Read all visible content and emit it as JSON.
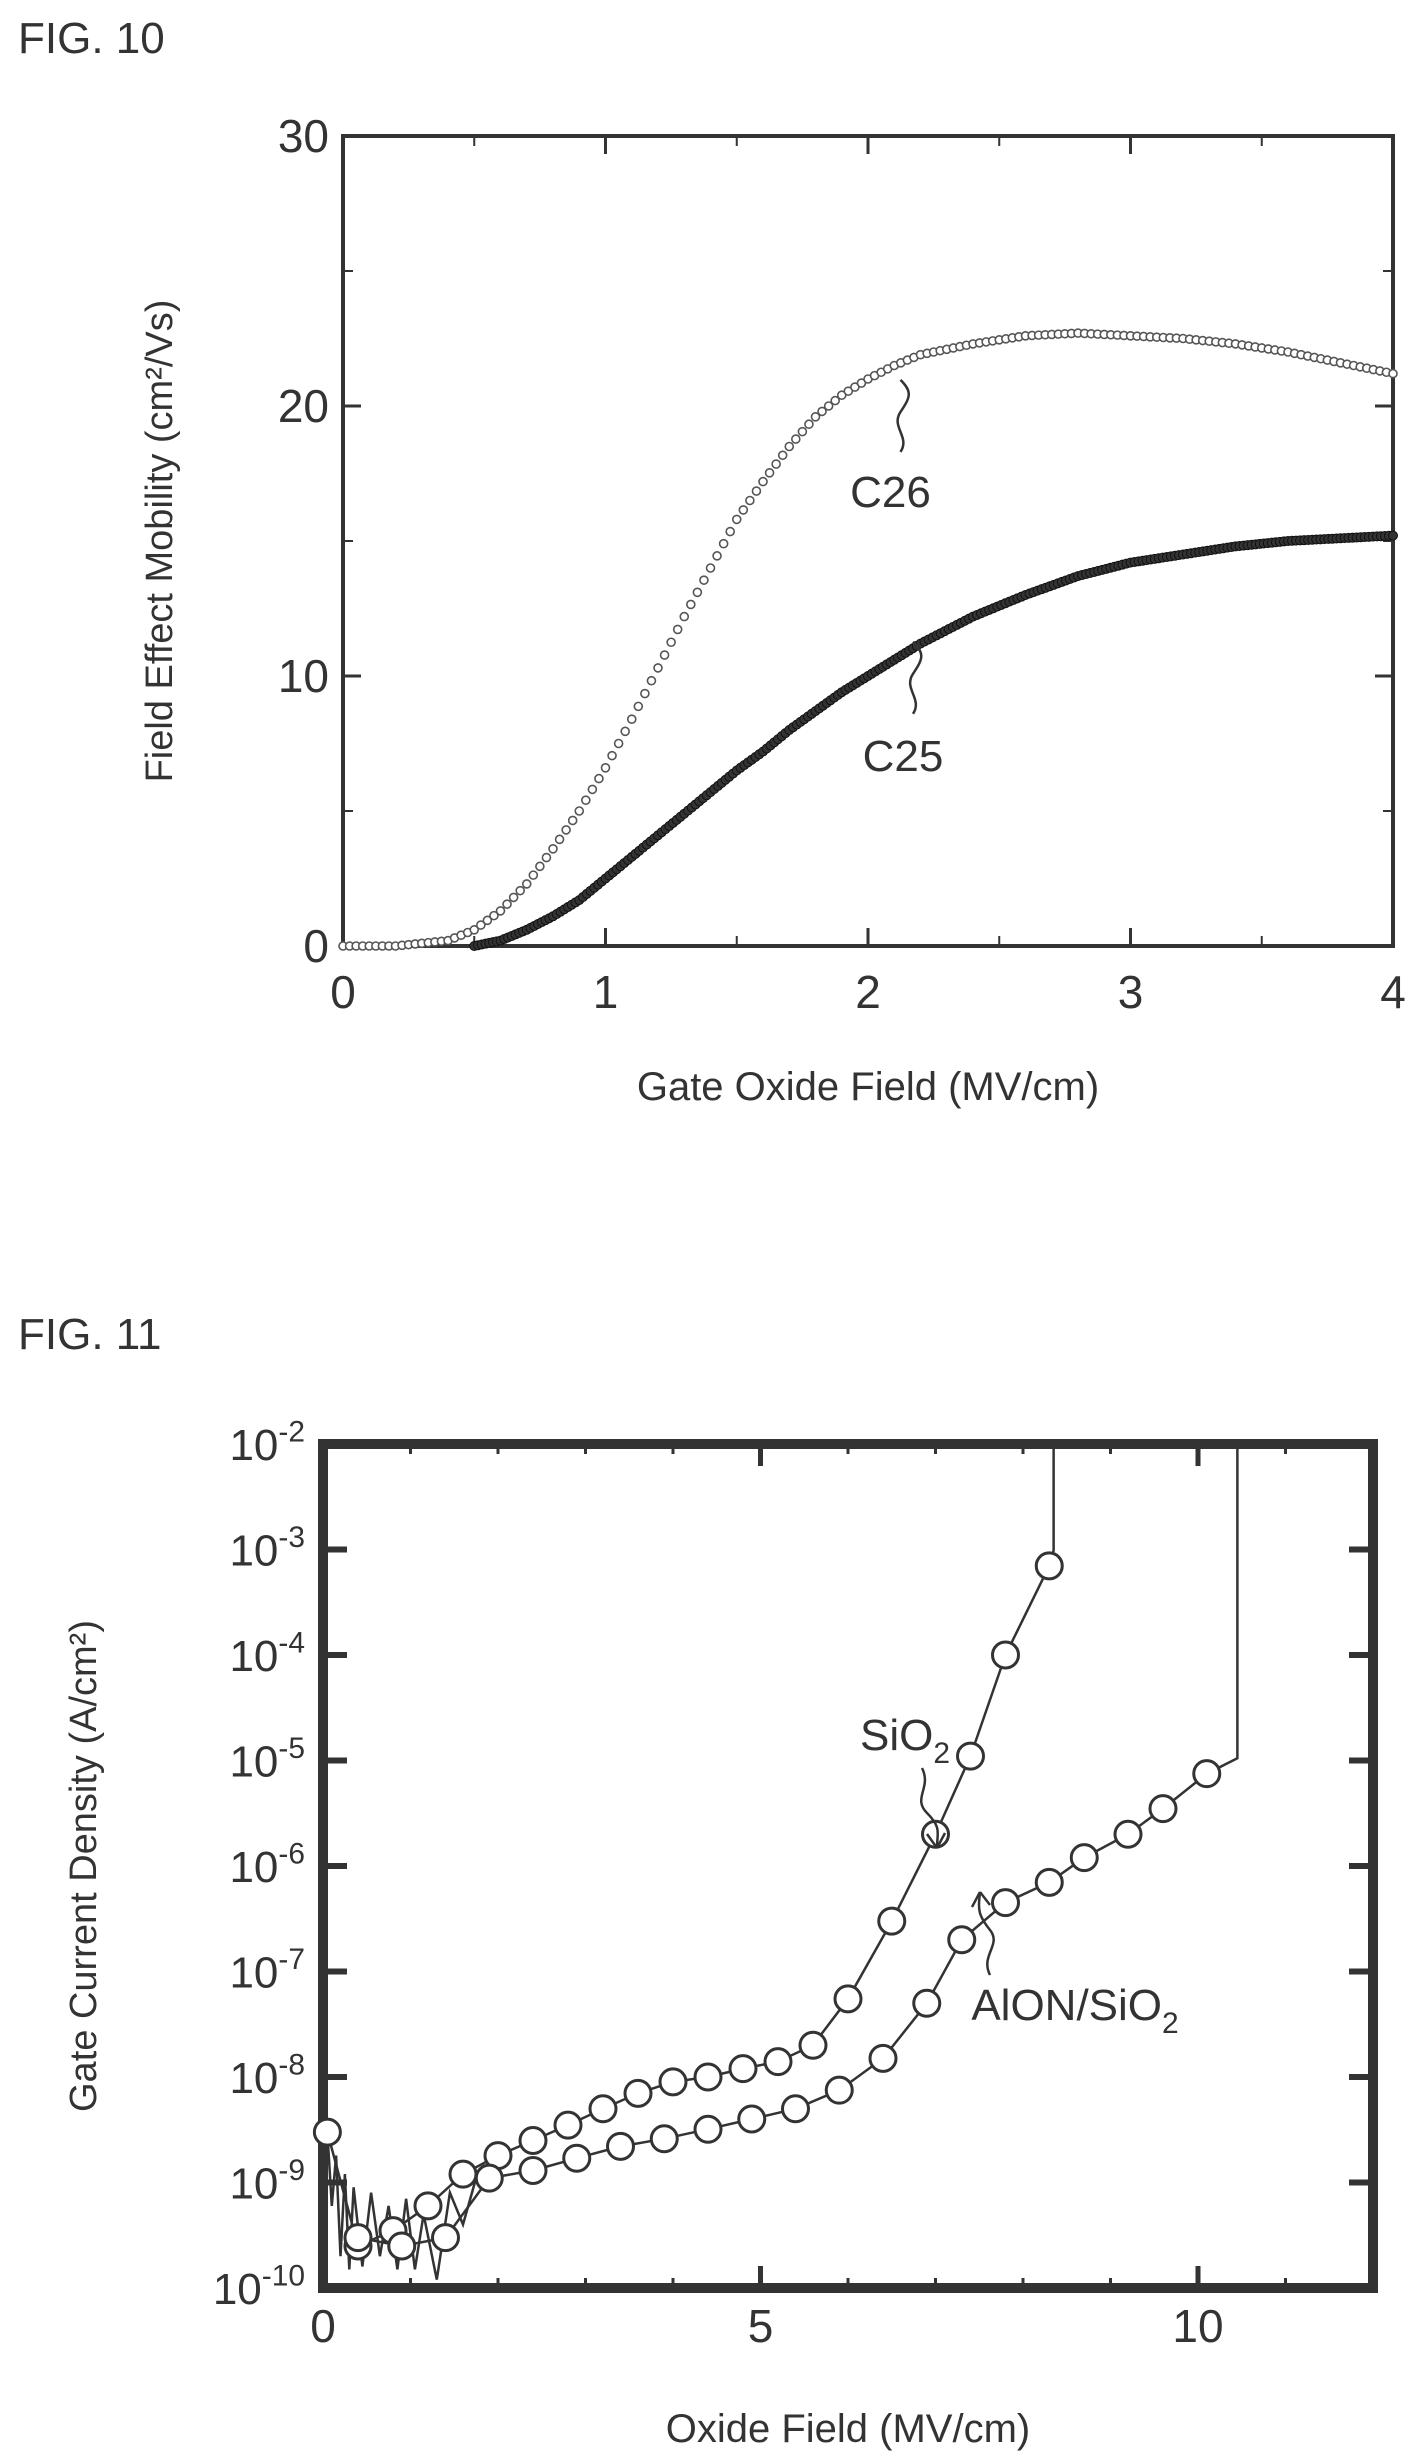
{
  "figures": [
    {
      "label": "FIG. 10"
    },
    {
      "label": "FIG. 11"
    }
  ],
  "chart_data": [
    {
      "type": "scatter",
      "title": "",
      "xlabel": "Gate Oxide Field (MV/cm)",
      "ylabel": "Field Effect Mobility (cm²/Vs)",
      "xlim": [
        0,
        4
      ],
      "ylim": [
        0,
        30
      ],
      "xticks": [
        "0",
        "1",
        "2",
        "3",
        "4"
      ],
      "yticks": [
        "0",
        "10",
        "20",
        "30"
      ],
      "grid": false,
      "series": [
        {
          "name": "C26",
          "marker": "open-circle-small",
          "x": [
            0,
            0.2,
            0.4,
            0.5,
            0.6,
            0.7,
            0.8,
            0.9,
            1.0,
            1.1,
            1.2,
            1.3,
            1.4,
            1.5,
            1.6,
            1.7,
            1.8,
            1.9,
            2.0,
            2.1,
            2.2,
            2.4,
            2.6,
            2.8,
            3.0,
            3.2,
            3.4,
            3.6,
            3.8,
            4.0
          ],
          "y": [
            0,
            0,
            0.2,
            0.6,
            1.3,
            2.3,
            3.6,
            5.0,
            6.6,
            8.4,
            10.3,
            12.2,
            14.0,
            15.8,
            17.2,
            18.5,
            19.6,
            20.4,
            21.0,
            21.5,
            21.9,
            22.3,
            22.6,
            22.7,
            22.6,
            22.5,
            22.3,
            22.0,
            21.6,
            21.2
          ]
        },
        {
          "name": "C25",
          "marker": "filled-small",
          "x": [
            0.5,
            0.6,
            0.7,
            0.8,
            0.9,
            1.0,
            1.1,
            1.2,
            1.3,
            1.4,
            1.5,
            1.6,
            1.7,
            1.8,
            1.9,
            2.0,
            2.1,
            2.2,
            2.4,
            2.6,
            2.8,
            3.0,
            3.2,
            3.4,
            3.6,
            3.8,
            4.0
          ],
          "y": [
            0,
            0.2,
            0.6,
            1.1,
            1.7,
            2.5,
            3.3,
            4.1,
            4.9,
            5.7,
            6.5,
            7.2,
            8.0,
            8.7,
            9.4,
            10.0,
            10.6,
            11.2,
            12.2,
            13.0,
            13.7,
            14.2,
            14.5,
            14.8,
            15.0,
            15.1,
            15.2
          ]
        }
      ],
      "annotations": [
        {
          "text": "C26",
          "x": 2.2,
          "y": 17.3
        },
        {
          "text": "C25",
          "x": 2.4,
          "y": 7.6
        }
      ]
    },
    {
      "type": "line",
      "title": "",
      "xlabel": "Oxide Field (MV/cm)",
      "ylabel": "Gate Current Density (A/cm²)",
      "xlim": [
        0,
        12
      ],
      "ylim_log10": [
        -10,
        -2
      ],
      "yscale": "log",
      "xticks": [
        "0",
        "5",
        "10"
      ],
      "yticks": [
        {
          "base": "10",
          "exp": "-2"
        },
        {
          "base": "10",
          "exp": "-3"
        },
        {
          "base": "10",
          "exp": "-4"
        },
        {
          "base": "10",
          "exp": "-5"
        },
        {
          "base": "10",
          "exp": "-6"
        },
        {
          "base": "10",
          "exp": "-7"
        },
        {
          "base": "10",
          "exp": "-8"
        },
        {
          "base": "10",
          "exp": "-9"
        },
        {
          "base": "10",
          "exp": "-10"
        }
      ],
      "grid": false,
      "series": [
        {
          "name": "SiO",
          "name_sub": "2",
          "marker": "open-circle-large",
          "x": [
            0.05,
            0.4,
            0.8,
            1.2,
            1.6,
            2.0,
            2.4,
            2.8,
            3.2,
            3.6,
            4.0,
            4.4,
            4.8,
            5.2,
            5.6,
            6.0,
            6.5,
            7.0,
            7.4,
            7.8,
            8.3
          ],
          "y": [
            3e-09,
            2.5e-10,
            3.5e-10,
            6e-10,
            1.2e-09,
            1.8e-09,
            2.5e-09,
            3.5e-09,
            5e-09,
            7e-09,
            9e-09,
            1e-08,
            1.2e-08,
            1.4e-08,
            2e-08,
            5.5e-08,
            3e-07,
            2e-06,
            1.1e-05,
            0.0001,
            0.0007
          ]
        },
        {
          "name": "AlON/SiO",
          "name_sub": "2",
          "marker": "open-circle-large",
          "x": [
            0.4,
            0.9,
            1.4,
            1.9,
            2.4,
            2.9,
            3.4,
            3.9,
            4.4,
            4.9,
            5.4,
            5.9,
            6.4,
            6.9,
            7.3,
            7.8,
            8.3,
            8.7,
            9.2,
            9.6,
            10.1
          ],
          "y": [
            3e-10,
            2.5e-10,
            3e-10,
            1.1e-09,
            1.3e-09,
            1.7e-09,
            2.2e-09,
            2.6e-09,
            3.2e-09,
            4e-09,
            5e-09,
            7.5e-09,
            1.5e-08,
            5e-08,
            2e-07,
            4.5e-07,
            7e-07,
            1.2e-06,
            2e-06,
            3.5e-06,
            7.5e-06
          ]
        }
      ],
      "annotations": [
        {
          "text": "SiO",
          "sub": "2"
        },
        {
          "text": "AlON/SiO",
          "sub": "2"
        }
      ]
    }
  ]
}
